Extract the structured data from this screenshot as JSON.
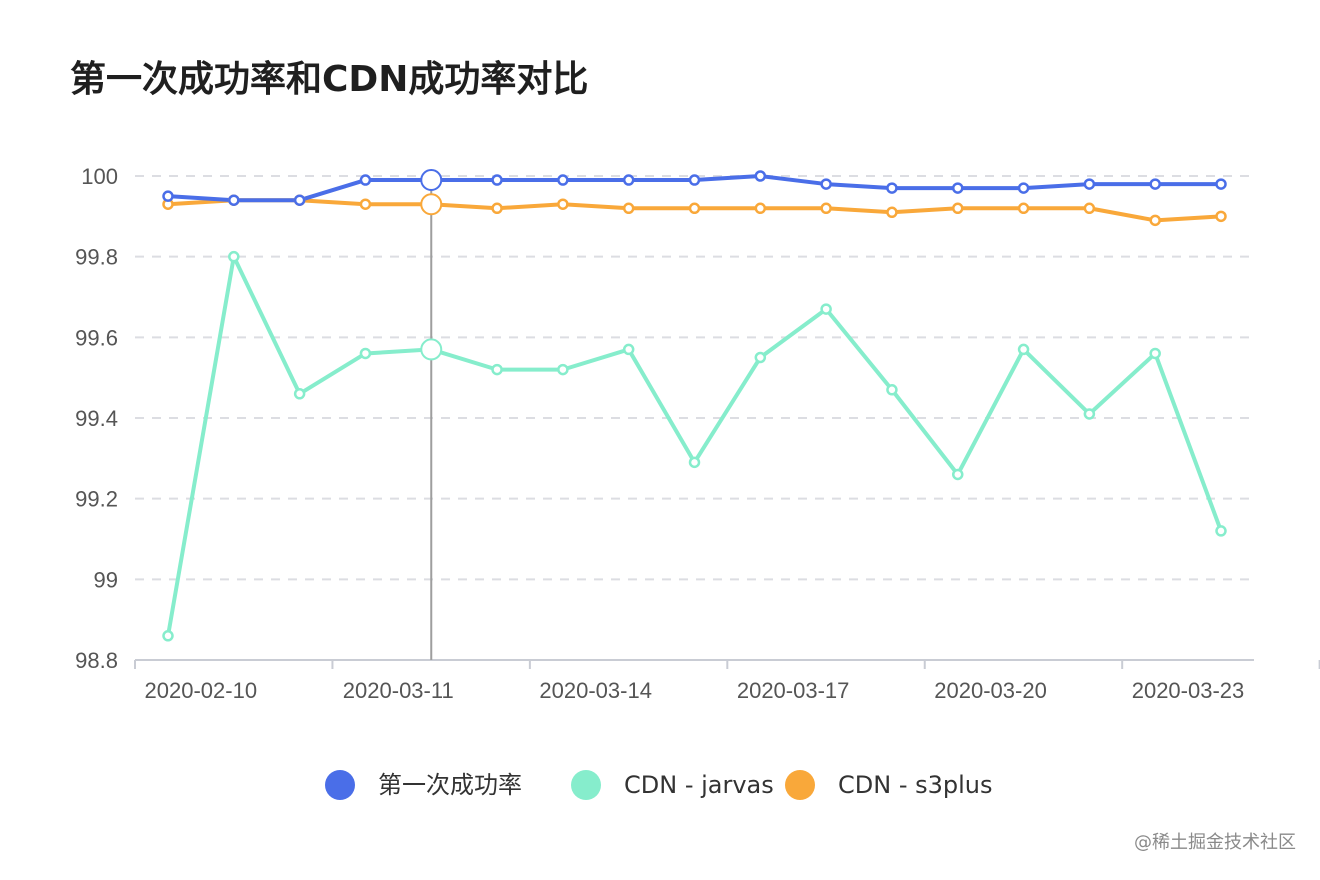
{
  "chart_data": {
    "type": "line",
    "title": "第一次成功率和CDN成功率对比",
    "xlabel": "",
    "ylabel": "",
    "x_tick_labels": [
      "2020-02-10",
      "2020-03-11",
      "2020-03-14",
      "2020-03-17",
      "2020-03-20",
      "2020-03-23"
    ],
    "y_tick_labels": [
      "98.8",
      "99",
      "99.2",
      "99.4",
      "99.6",
      "99.8",
      "100"
    ],
    "ylim": [
      98.8,
      100
    ],
    "grid": "horizontal-dashed",
    "legend_position": "bottom",
    "series": [
      {
        "name": "第一次成功率",
        "color": "#4a6ee8",
        "values": [
          99.95,
          99.94,
          99.94,
          99.99,
          99.99,
          99.99,
          99.99,
          99.99,
          99.99,
          100.0,
          99.98,
          99.97,
          99.97,
          99.97,
          99.98,
          99.98,
          99.98
        ]
      },
      {
        "name": "CDN - jarvas",
        "color": "#86edcc",
        "values": [
          98.86,
          99.8,
          99.46,
          99.56,
          99.57,
          99.52,
          99.52,
          99.57,
          99.29,
          99.55,
          99.67,
          99.47,
          99.26,
          99.57,
          99.41,
          99.56,
          99.12
        ]
      },
      {
        "name": "CDN - s3plus",
        "color": "#f9a83a",
        "values": [
          99.93,
          99.94,
          99.94,
          99.93,
          99.93,
          99.92,
          99.93,
          99.92,
          99.92,
          99.92,
          99.92,
          99.91,
          99.92,
          99.92,
          99.92,
          99.89,
          99.9
        ]
      }
    ],
    "highlighted_index": 4
  },
  "watermark": "@稀土掘金技术社区"
}
